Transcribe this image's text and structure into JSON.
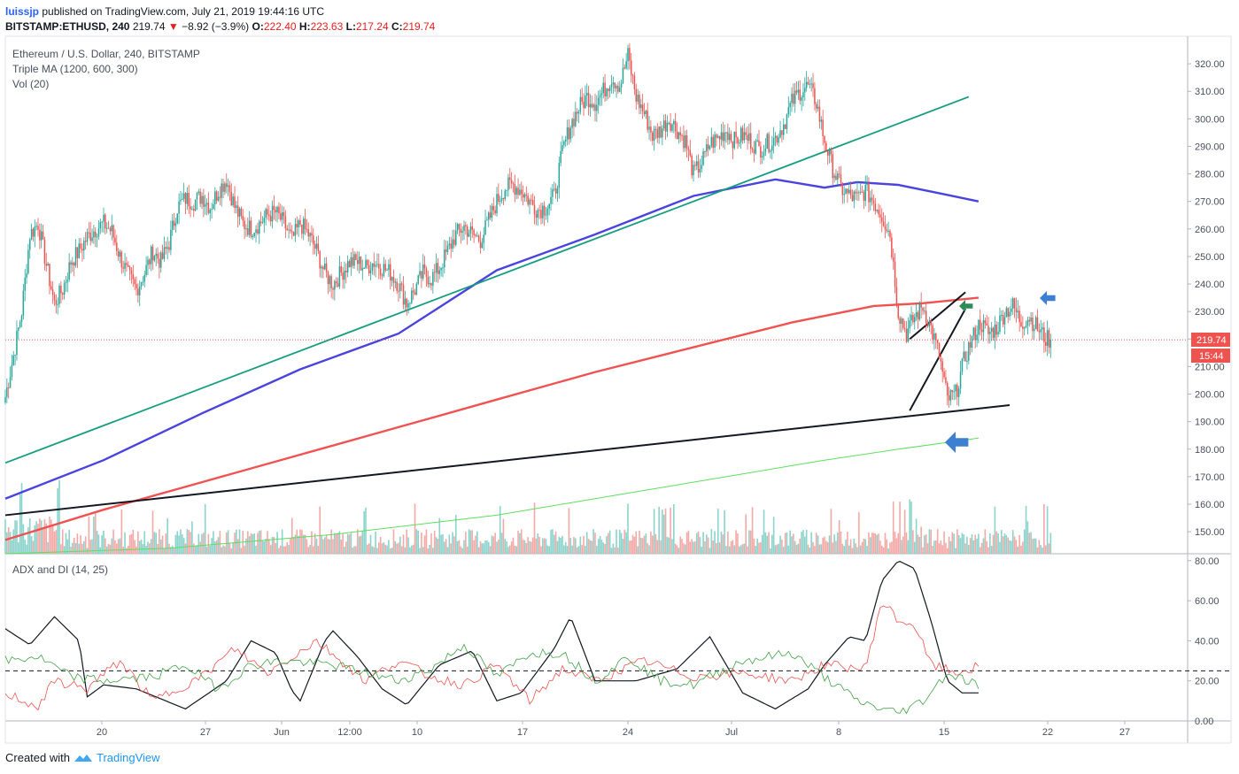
{
  "header": {
    "author": "luissjp",
    "published": "published on TradingView.com, July 21, 2019 19:44:16 UTC",
    "symbol": "BITSTAMP:ETHUSD, 240",
    "last": "219.74",
    "change": "−8.92 (−3.9%)",
    "o_label": "O:",
    "o": "222.40",
    "h_label": "H:",
    "h": "223.63",
    "l_label": "L:",
    "l": "217.24",
    "c_label": "C:",
    "c": "219.74"
  },
  "legend": {
    "line1": "Ethereum / U.S. Dollar, 240, BITSTAMP",
    "line2": "Triple MA (1200, 600, 300)",
    "line3": "Vol (20)",
    "adx": "ADX and DI (14, 25)"
  },
  "price_badge": {
    "price": "219.74",
    "timer": "15:44"
  },
  "footer": {
    "created": "Created with",
    "brand": "TradingView"
  },
  "colors": {
    "up": "#26a69a",
    "down": "#ef5350",
    "ma_blue": "#4a43e0",
    "ma_red": "#f05252",
    "ma_green": "#5dde5d",
    "trend_teal": "#159d80",
    "arrow_blue": "#3d7fd1",
    "arrow_green": "#2e8b57"
  },
  "chart_data": [
    {
      "type": "candlestick",
      "title": "Ethereum / U.S. Dollar, 240, BITSTAMP",
      "ylim": [
        142,
        330
      ],
      "y_ticks": [
        "320.00",
        "310.00",
        "300.00",
        "290.00",
        "280.00",
        "270.00",
        "260.00",
        "250.00",
        "240.00",
        "230.00",
        "220.00",
        "210.00",
        "200.00",
        "190.00",
        "180.00",
        "170.00",
        "160.00",
        "150.00"
      ],
      "x_ticks": [
        "20",
        "27",
        "Jun",
        "12:00",
        "10",
        "17",
        "24",
        "Jul",
        "8",
        "15",
        "22",
        "27"
      ],
      "close_path": [
        [
          0,
          199
        ],
        [
          5,
          214
        ],
        [
          10,
          230
        ],
        [
          15,
          258
        ],
        [
          20,
          262
        ],
        [
          25,
          247
        ],
        [
          30,
          233
        ],
        [
          35,
          238
        ],
        [
          40,
          248
        ],
        [
          45,
          252
        ],
        [
          50,
          257
        ],
        [
          55,
          260
        ],
        [
          60,
          262
        ],
        [
          65,
          259
        ],
        [
          70,
          250
        ],
        [
          75,
          243
        ],
        [
          80,
          238
        ],
        [
          85,
          244
        ],
        [
          90,
          252
        ],
        [
          95,
          248
        ],
        [
          100,
          255
        ],
        [
          105,
          268
        ],
        [
          110,
          271
        ],
        [
          115,
          270
        ],
        [
          120,
          272
        ],
        [
          125,
          268
        ],
        [
          130,
          274
        ],
        [
          135,
          278
        ],
        [
          140,
          268
        ],
        [
          145,
          262
        ],
        [
          150,
          260
        ],
        [
          155,
          262
        ],
        [
          160,
          265
        ],
        [
          165,
          266
        ],
        [
          170,
          262
        ],
        [
          175,
          256
        ],
        [
          180,
          262
        ],
        [
          185,
          258
        ],
        [
          190,
          252
        ],
        [
          195,
          244
        ],
        [
          200,
          240
        ],
        [
          205,
          244
        ],
        [
          210,
          248
        ],
        [
          215,
          248
        ],
        [
          220,
          246
        ],
        [
          225,
          248
        ],
        [
          230,
          246
        ],
        [
          235,
          244
        ],
        [
          240,
          240
        ],
        [
          245,
          233
        ],
        [
          250,
          238
        ],
        [
          255,
          244
        ],
        [
          260,
          242
        ],
        [
          265,
          246
        ],
        [
          270,
          252
        ],
        [
          275,
          258
        ],
        [
          280,
          261
        ],
        [
          285,
          258
        ],
        [
          290,
          256
        ],
        [
          295,
          263
        ],
        [
          300,
          270
        ],
        [
          305,
          275
        ],
        [
          310,
          276
        ],
        [
          315,
          274
        ],
        [
          320,
          270
        ],
        [
          325,
          267
        ],
        [
          330,
          268
        ],
        [
          335,
          272
        ],
        [
          340,
          288
        ],
        [
          345,
          298
        ],
        [
          350,
          304
        ],
        [
          355,
          308
        ],
        [
          360,
          306
        ],
        [
          365,
          310
        ],
        [
          370,
          315
        ],
        [
          375,
          312
        ],
        [
          380,
          323
        ],
        [
          385,
          308
        ],
        [
          390,
          302
        ],
        [
          395,
          294
        ],
        [
          400,
          296
        ],
        [
          405,
          300
        ],
        [
          410,
          296
        ],
        [
          415,
          292
        ],
        [
          420,
          280
        ],
        [
          425,
          284
        ],
        [
          430,
          291
        ],
        [
          435,
          293
        ],
        [
          440,
          296
        ],
        [
          445,
          292
        ],
        [
          450,
          294
        ],
        [
          455,
          292
        ],
        [
          460,
          289
        ],
        [
          465,
          291
        ],
        [
          470,
          293
        ],
        [
          475,
          298
        ],
        [
          480,
          306
        ],
        [
          485,
          310
        ],
        [
          490,
          312
        ],
        [
          495,
          306
        ],
        [
          500,
          292
        ],
        [
          505,
          282
        ],
        [
          510,
          275
        ],
        [
          515,
          272
        ],
        [
          520,
          271
        ],
        [
          525,
          274
        ],
        [
          530,
          270
        ],
        [
          535,
          265
        ],
        [
          540,
          258
        ],
        [
          545,
          230
        ],
        [
          550,
          222
        ],
        [
          555,
          228
        ],
        [
          560,
          232
        ],
        [
          565,
          224
        ],
        [
          570,
          214
        ],
        [
          575,
          198
        ],
        [
          580,
          200
        ],
        [
          585,
          212
        ],
        [
          590,
          220
        ],
        [
          595,
          226
        ],
        [
          600,
          222
        ],
        [
          605,
          224
        ],
        [
          610,
          230
        ],
        [
          615,
          232
        ],
        [
          620,
          226
        ],
        [
          625,
          228
        ],
        [
          630,
          224
        ],
        [
          635,
          220
        ],
        [
          638,
          219.74
        ]
      ],
      "series": [
        {
          "name": "Triple MA 300",
          "color": "#4a43e0",
          "points": [
            [
              0,
              162
            ],
            [
              60,
              176
            ],
            [
              120,
              193
            ],
            [
              180,
              209
            ],
            [
              240,
              222
            ],
            [
              300,
              245
            ],
            [
              360,
              258
            ],
            [
              420,
              272
            ],
            [
              470,
              278
            ],
            [
              500,
              275
            ],
            [
              520,
              277
            ],
            [
              545,
              276
            ],
            [
              570,
              273
            ],
            [
              594,
              270
            ]
          ]
        },
        {
          "name": "Triple MA 600",
          "color": "#f05252",
          "points": [
            [
              0,
              147
            ],
            [
              60,
              158
            ],
            [
              120,
              168
            ],
            [
              180,
              178
            ],
            [
              240,
              188
            ],
            [
              300,
              198
            ],
            [
              360,
              208
            ],
            [
              420,
              217
            ],
            [
              480,
              226
            ],
            [
              530,
              232
            ],
            [
              560,
              233
            ],
            [
              594,
              235
            ]
          ]
        },
        {
          "name": "Triple MA 1200",
          "color": "#5dde5d",
          "points": [
            [
              0,
              142
            ],
            [
              100,
              144
            ],
            [
              200,
              149
            ],
            [
              300,
              156
            ],
            [
              380,
              164
            ],
            [
              440,
              170
            ],
            [
              500,
              176
            ],
            [
              545,
              180
            ],
            [
              594,
              184
            ]
          ]
        }
      ],
      "trendlines": [
        {
          "from": [
            0,
            175
          ],
          "to": [
            588,
            308
          ]
        },
        {
          "from": [
            0,
            156
          ],
          "to": [
            613,
            196
          ]
        },
        {
          "from": [
            552,
            220
          ],
          "to": [
            586,
            237
          ]
        },
        {
          "from": [
            552,
            194
          ],
          "to": [
            586,
            231
          ]
        }
      ],
      "price_line": 219.74
    },
    {
      "type": "line",
      "title": "ADX and DI (14, 25)",
      "ylim": [
        0,
        83
      ],
      "y_ticks": [
        "80.00",
        "60.00",
        "40.00",
        "20.00",
        "0.00"
      ],
      "reference_level": 25,
      "series": [
        {
          "name": "ADX",
          "color": "#131722",
          "points": [
            [
              0,
              46
            ],
            [
              15,
              38
            ],
            [
              30,
              52
            ],
            [
              45,
              40
            ],
            [
              50,
              12
            ],
            [
              60,
              18
            ],
            [
              80,
              16
            ],
            [
              110,
              6
            ],
            [
              135,
              20
            ],
            [
              150,
              40
            ],
            [
              165,
              34
            ],
            [
              175,
              15
            ],
            [
              180,
              10
            ],
            [
              195,
              40
            ],
            [
              200,
              45
            ],
            [
              215,
              32
            ],
            [
              230,
              16
            ],
            [
              245,
              8
            ],
            [
              265,
              28
            ],
            [
              285,
              35
            ],
            [
              300,
              10
            ],
            [
              315,
              14
            ],
            [
              335,
              36
            ],
            [
              345,
              52
            ],
            [
              360,
              20
            ],
            [
              385,
              20
            ],
            [
              410,
              26
            ],
            [
              430,
              42
            ],
            [
              450,
              14
            ],
            [
              470,
              6
            ],
            [
              490,
              16
            ],
            [
              500,
              28
            ],
            [
              515,
              42
            ],
            [
              525,
              40
            ],
            [
              535,
              70
            ],
            [
              545,
              80
            ],
            [
              555,
              76
            ],
            [
              565,
              50
            ],
            [
              575,
              20
            ],
            [
              584,
              14
            ],
            [
              594,
              14
            ]
          ]
        },
        {
          "name": "+DI",
          "color": "#ef5350",
          "points": [
            [
              0,
              14
            ],
            [
              20,
              7
            ],
            [
              30,
              20
            ],
            [
              50,
              16
            ],
            [
              70,
              30
            ],
            [
              90,
              10
            ],
            [
              120,
              22
            ],
            [
              140,
              36
            ],
            [
              160,
              24
            ],
            [
              190,
              40
            ],
            [
              220,
              20
            ],
            [
              240,
              30
            ],
            [
              260,
              22
            ],
            [
              280,
              18
            ],
            [
              300,
              28
            ],
            [
              320,
              10
            ],
            [
              340,
              26
            ],
            [
              360,
              20
            ],
            [
              390,
              30
            ],
            [
              420,
              22
            ],
            [
              450,
              24
            ],
            [
              480,
              20
            ],
            [
              500,
              28
            ],
            [
              525,
              26
            ],
            [
              535,
              60
            ],
            [
              545,
              50
            ],
            [
              555,
              48
            ],
            [
              565,
              28
            ],
            [
              580,
              24
            ],
            [
              594,
              27
            ]
          ]
        },
        {
          "name": "−DI",
          "color": "#43a047",
          "points": [
            [
              0,
              30
            ],
            [
              20,
              32
            ],
            [
              40,
              22
            ],
            [
              60,
              20
            ],
            [
              90,
              22
            ],
            [
              110,
              28
            ],
            [
              130,
              16
            ],
            [
              150,
              28
            ],
            [
              170,
              30
            ],
            [
              200,
              28
            ],
            [
              220,
              24
            ],
            [
              240,
              20
            ],
            [
              260,
              26
            ],
            [
              280,
              38
            ],
            [
              300,
              22
            ],
            [
              320,
              34
            ],
            [
              340,
              34
            ],
            [
              360,
              20
            ],
            [
              380,
              32
            ],
            [
              400,
              20
            ],
            [
              420,
              18
            ],
            [
              450,
              30
            ],
            [
              480,
              34
            ],
            [
              500,
              22
            ],
            [
              520,
              10
            ],
            [
              535,
              6
            ],
            [
              545,
              4
            ],
            [
              560,
              10
            ],
            [
              575,
              24
            ],
            [
              594,
              18
            ]
          ]
        }
      ]
    }
  ]
}
